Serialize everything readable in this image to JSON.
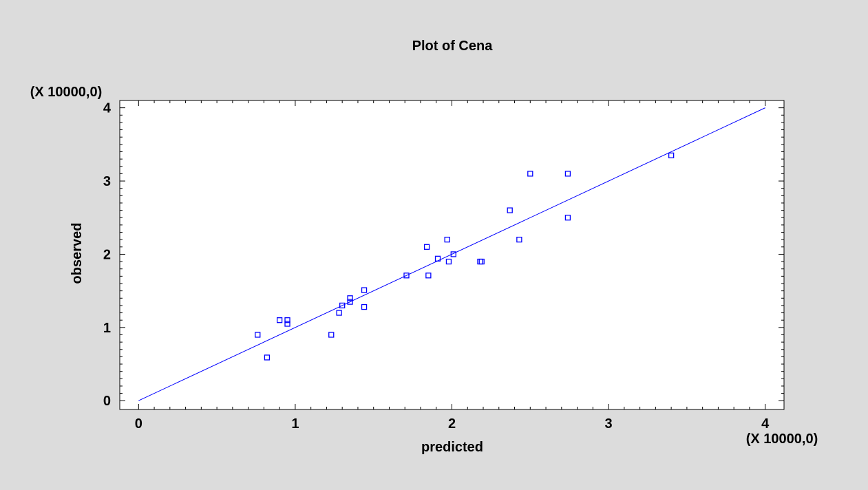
{
  "chart_data": {
    "type": "scatter",
    "title": "Plot of Cena",
    "xlabel": "predicted",
    "ylabel": "observed",
    "x_scale_label": "(X 10000,0)",
    "y_scale_label": "(X 10000,0)",
    "xlim": [
      -0.12,
      4.12
    ],
    "ylim": [
      -0.12,
      4.1
    ],
    "x_ticks": [
      0,
      1,
      2,
      3,
      4
    ],
    "y_ticks": [
      0,
      1,
      2,
      3,
      4
    ],
    "x_tick_labels": [
      "0",
      "1",
      "2",
      "3",
      "4"
    ],
    "y_tick_labels": [
      "0",
      "1",
      "2",
      "3",
      "4"
    ],
    "grid": false,
    "series": [
      {
        "marker": "square",
        "color": "#0000ff",
        "points": [
          [
            0.76,
            0.9
          ],
          [
            0.82,
            0.59
          ],
          [
            0.9,
            1.1
          ],
          [
            0.95,
            1.1
          ],
          [
            0.95,
            1.05
          ],
          [
            1.23,
            0.9
          ],
          [
            1.28,
            1.2
          ],
          [
            1.3,
            1.3
          ],
          [
            1.35,
            1.35
          ],
          [
            1.35,
            1.4
          ],
          [
            1.44,
            1.51
          ],
          [
            1.44,
            1.28
          ],
          [
            1.71,
            1.71
          ],
          [
            1.84,
            2.1
          ],
          [
            1.85,
            1.71
          ],
          [
            1.91,
            1.94
          ],
          [
            1.97,
            2.2
          ],
          [
            1.98,
            1.9
          ],
          [
            2.01,
            2.0
          ],
          [
            2.18,
            1.9
          ],
          [
            2.19,
            1.9
          ],
          [
            2.37,
            2.6
          ],
          [
            2.43,
            2.2
          ],
          [
            2.5,
            3.1
          ],
          [
            2.74,
            3.1
          ],
          [
            2.74,
            2.5
          ],
          [
            3.4,
            3.35
          ]
        ]
      }
    ],
    "reference_line": {
      "from": [
        0,
        0
      ],
      "to": [
        4,
        4
      ],
      "color": "#0000ff"
    },
    "colors": {
      "background": "#dcdcdc",
      "plot_area": "#ffffff",
      "axis": "#000000"
    }
  }
}
